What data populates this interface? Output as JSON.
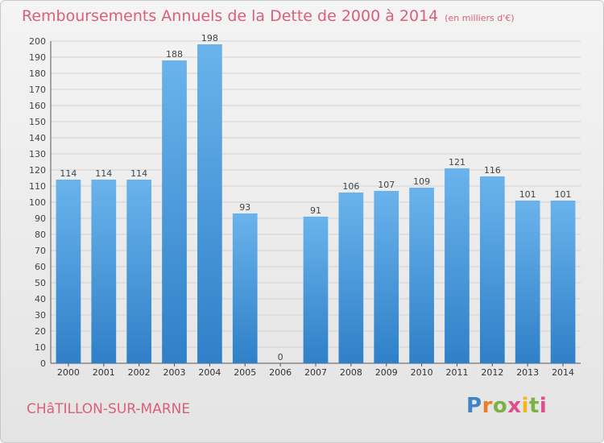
{
  "header": {
    "title": "Remboursements Annuels de la Dette de 2000 à 2014",
    "unit": "(en milliers d'€)"
  },
  "footer": {
    "commune": "CHâTILLON-SUR-MARNE",
    "brand": "Proxiti"
  },
  "colors": {
    "title": "#d95f7a",
    "bar_light": "#6ab3ec",
    "bar_dark": "#2f80c8"
  },
  "chart_data": {
    "type": "bar",
    "categories": [
      "2000",
      "2001",
      "2002",
      "2003",
      "2004",
      "2005",
      "2006",
      "2007",
      "2008",
      "2009",
      "2010",
      "2011",
      "2012",
      "2013",
      "2014"
    ],
    "values": [
      114,
      114,
      114,
      188,
      198,
      93,
      0,
      91,
      106,
      107,
      109,
      121,
      116,
      101,
      101
    ],
    "title": "Remboursements Annuels de la Dette de 2000 à 2014",
    "xlabel": "",
    "ylabel": "",
    "ylim": [
      0,
      200
    ],
    "ytick_step": 10,
    "grid": true,
    "legend": "none"
  }
}
